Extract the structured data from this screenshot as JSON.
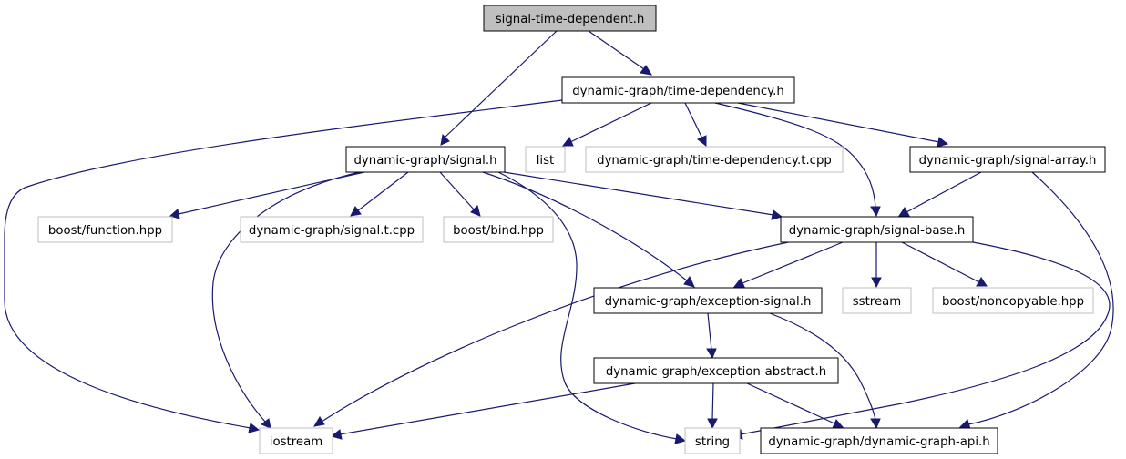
{
  "title": "signal-time-dependent.h",
  "nodes": {
    "signal_time_dependent_h": "signal-time-dependent.h",
    "time_dependency_h": "dynamic-graph/time-dependency.h",
    "signal_h": "dynamic-graph/signal.h",
    "list": "list",
    "time_dependency_t_cpp": "dynamic-graph/time-dependency.t.cpp",
    "signal_array_h": "dynamic-graph/signal-array.h",
    "boost_function_hpp": "boost/function.hpp",
    "signal_t_cpp": "dynamic-graph/signal.t.cpp",
    "boost_bind_hpp": "boost/bind.hpp",
    "signal_base_h": "dynamic-graph/signal-base.h",
    "exception_signal_h": "dynamic-graph/exception-signal.h",
    "sstream": "sstream",
    "boost_noncopyable_hpp": "boost/noncopyable.hpp",
    "exception_abstract_h": "dynamic-graph/exception-abstract.h",
    "iostream": "iostream",
    "string": "string",
    "dynamic_graph_api_h": "dynamic-graph/dynamic-graph-api.h"
  },
  "colors": {
    "edge": "#191970",
    "local_border": "#000000",
    "external_border": "#bfbfbf",
    "root_fill": "#bfbfbf"
  }
}
